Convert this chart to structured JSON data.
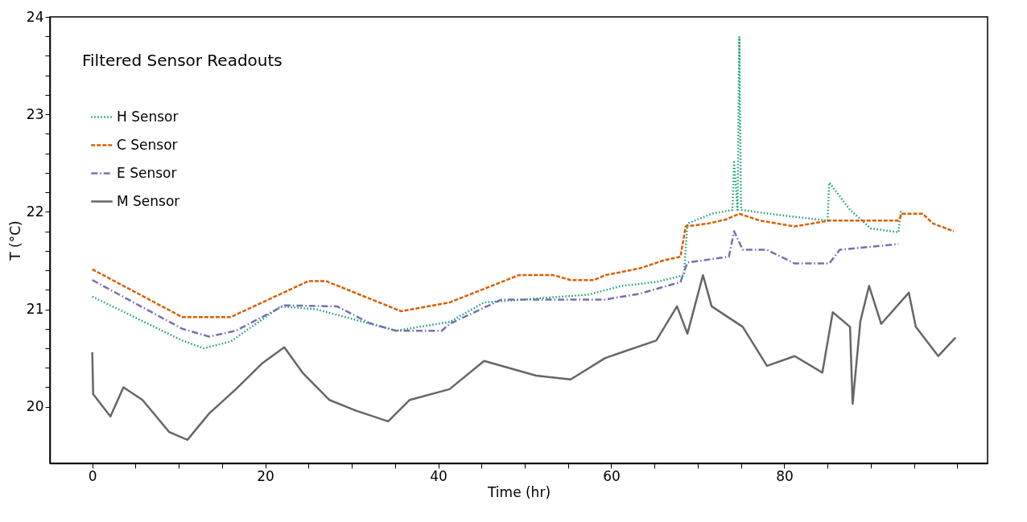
{
  "chart_data": {
    "type": "line",
    "annotations": [
      "Filtered Sensor Readouts"
    ],
    "xlabel": "Time (hr)",
    "ylabel": "T (°C)",
    "xlim": [
      -4.9,
      103.5
    ],
    "ylim": [
      19.42,
      24.0
    ],
    "xticks": [
      0,
      {
        "value": 5,
        "label": null
      },
      {
        "value": 10,
        "label": null
      },
      {
        "value": 15,
        "label": null
      },
      20,
      {
        "value": 25,
        "label": null
      },
      {
        "value": 30,
        "label": null
      },
      {
        "value": 35,
        "label": null
      },
      40,
      {
        "value": 45,
        "label": null
      },
      {
        "value": 50,
        "label": null
      },
      {
        "value": 55,
        "label": null
      },
      60,
      {
        "value": 65,
        "label": null
      },
      {
        "value": 70,
        "label": null
      },
      {
        "value": 75,
        "label": null
      },
      80,
      {
        "value": 85,
        "label": null
      },
      {
        "value": 90,
        "label": null
      },
      {
        "value": 95,
        "label": null
      },
      {
        "value": 100,
        "label": null
      }
    ],
    "yticks": [
      20,
      {
        "value": 20.2,
        "label": null
      },
      {
        "value": 20.4,
        "label": null
      },
      {
        "value": 20.6,
        "label": null
      },
      {
        "value": 20.8,
        "label": null
      },
      21,
      {
        "value": 21.2,
        "label": null
      },
      {
        "value": 21.4,
        "label": null
      },
      {
        "value": 21.6,
        "label": null
      },
      {
        "value": 21.8,
        "label": null
      },
      22,
      {
        "value": 22.2,
        "label": null
      },
      {
        "value": 22.4,
        "label": null
      },
      {
        "value": 22.6,
        "label": null
      },
      {
        "value": 22.8,
        "label": null
      },
      23,
      {
        "value": 23.2,
        "label": null
      },
      {
        "value": 23.4,
        "label": null
      },
      {
        "value": 23.6,
        "label": null
      },
      {
        "value": 23.8,
        "label": null
      },
      24
    ],
    "grid": false,
    "legend": "top left",
    "series": [
      {
        "name": "H Sensor",
        "color": "#1b9e77",
        "line_style": "dotted",
        "x": [
          0,
          10.4,
          12.9,
          16,
          21.8,
          25.9,
          30.5,
          35.1,
          41.3,
          45.3,
          57.3,
          61.2,
          65.2,
          68.4,
          68.8,
          71.6,
          74,
          74.2,
          74.6,
          74.8,
          75,
          79.2,
          85,
          85.2,
          87.6,
          90,
          93.2,
          93.5
        ],
        "values": [
          21.13,
          20.68,
          20.6,
          20.67,
          21.03,
          21.0,
          20.89,
          20.78,
          20.87,
          21.07,
          21.15,
          21.24,
          21.28,
          21.35,
          21.88,
          21.98,
          22.02,
          22.51,
          22.02,
          23.8,
          22.02,
          21.97,
          21.91,
          22.3,
          22.02,
          21.83,
          21.79,
          22.02
        ]
      },
      {
        "name": "C Sensor",
        "color": "#d95f02",
        "line_style": "dashed",
        "x": [
          0,
          10.4,
          16,
          25,
          27,
          35.7,
          41.3,
          49.3,
          53.3,
          55.3,
          58,
          59.3,
          63.3,
          66,
          68,
          68.6,
          71.2,
          73.2,
          74.8,
          77.2,
          81.2,
          85.2,
          93.2,
          93.6,
          96,
          97.2,
          99.6
        ],
        "values": [
          21.41,
          20.92,
          20.92,
          21.29,
          21.29,
          20.98,
          21.07,
          21.35,
          21.35,
          21.3,
          21.3,
          21.35,
          21.42,
          21.5,
          21.54,
          21.85,
          21.88,
          21.92,
          21.98,
          21.91,
          21.85,
          21.91,
          21.91,
          21.98,
          21.98,
          21.88,
          21.8
        ]
      },
      {
        "name": "E Sensor",
        "color": "#7570b3",
        "line_style": "dashdot",
        "x": [
          0,
          10.4,
          13.5,
          16.6,
          22.2,
          28.3,
          32,
          35.1,
          40.4,
          41.3,
          47.3,
          59.3,
          63.3,
          68,
          68.8,
          73.6,
          74.2,
          75.2,
          78,
          81.2,
          85.2,
          86.4,
          93.2
        ],
        "values": [
          21.3,
          20.8,
          20.72,
          20.78,
          21.04,
          21.03,
          20.86,
          20.78,
          20.78,
          20.85,
          21.1,
          21.1,
          21.16,
          21.28,
          21.48,
          21.54,
          21.8,
          21.61,
          21.61,
          21.47,
          21.47,
          21.61,
          21.67
        ]
      },
      {
        "name": "M Sensor",
        "color": "#666666",
        "line_style": "solid",
        "x": [
          0,
          0.1,
          2.1,
          3.6,
          5.8,
          8.9,
          11,
          13.5,
          16.6,
          19.7,
          22.2,
          24.3,
          27.4,
          30.5,
          34.2,
          36.7,
          41.3,
          45.3,
          51.3,
          55.3,
          59.3,
          65.2,
          67.6,
          68.8,
          70.6,
          71.6,
          75.2,
          78,
          81.2,
          84.4,
          85.6,
          87.6,
          87.9,
          88.8,
          89.8,
          91.2,
          94.4,
          95.2,
          97.8,
          99.8
        ],
        "values": [
          20.56,
          20.13,
          19.9,
          20.2,
          20.07,
          19.74,
          19.66,
          19.93,
          20.18,
          20.45,
          20.61,
          20.35,
          20.07,
          19.96,
          19.85,
          20.07,
          20.18,
          20.47,
          20.32,
          20.28,
          20.5,
          20.68,
          21.03,
          20.75,
          21.35,
          21.03,
          20.82,
          20.42,
          20.52,
          20.35,
          20.97,
          20.82,
          20.03,
          20.88,
          21.24,
          20.85,
          21.17,
          20.82,
          20.52,
          20.71
        ]
      }
    ]
  }
}
